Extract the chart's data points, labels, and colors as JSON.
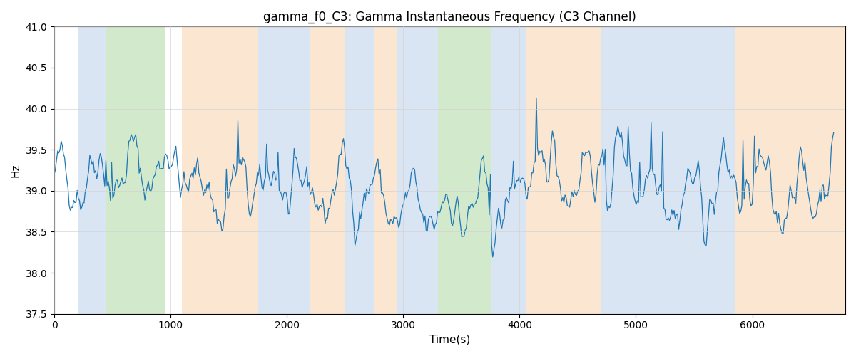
{
  "title": "gamma_f0_C3: Gamma Instantaneous Frequency (C3 Channel)",
  "xlabel": "Time(s)",
  "ylabel": "Hz",
  "ylim": [
    37.5,
    41.0
  ],
  "xlim": [
    0,
    6800
  ],
  "line_color": "#1f77b4",
  "line_width": 0.9,
  "bg_bands": [
    {
      "xstart": 200,
      "xend": 450,
      "color": "#aec6e8",
      "alpha": 0.45
    },
    {
      "xstart": 450,
      "xend": 950,
      "color": "#90c97e",
      "alpha": 0.4
    },
    {
      "xstart": 1100,
      "xend": 1750,
      "color": "#f5c99a",
      "alpha": 0.45
    },
    {
      "xstart": 1750,
      "xend": 2200,
      "color": "#aec6e8",
      "alpha": 0.45
    },
    {
      "xstart": 2200,
      "xend": 2500,
      "color": "#f5c99a",
      "alpha": 0.45
    },
    {
      "xstart": 2500,
      "xend": 2750,
      "color": "#aec6e8",
      "alpha": 0.45
    },
    {
      "xstart": 2750,
      "xend": 2950,
      "color": "#f5c99a",
      "alpha": 0.45
    },
    {
      "xstart": 2950,
      "xend": 3300,
      "color": "#aec6e8",
      "alpha": 0.45
    },
    {
      "xstart": 3300,
      "xend": 3750,
      "color": "#90c97e",
      "alpha": 0.4
    },
    {
      "xstart": 3750,
      "xend": 4050,
      "color": "#aec6e8",
      "alpha": 0.45
    },
    {
      "xstart": 4050,
      "xend": 4700,
      "color": "#f5c99a",
      "alpha": 0.45
    },
    {
      "xstart": 4700,
      "xend": 5850,
      "color": "#aec6e8",
      "alpha": 0.45
    },
    {
      "xstart": 5850,
      "xend": 6800,
      "color": "#f5c99a",
      "alpha": 0.45
    }
  ],
  "n_points": 680,
  "base_freq": 39.0,
  "seed": 42
}
